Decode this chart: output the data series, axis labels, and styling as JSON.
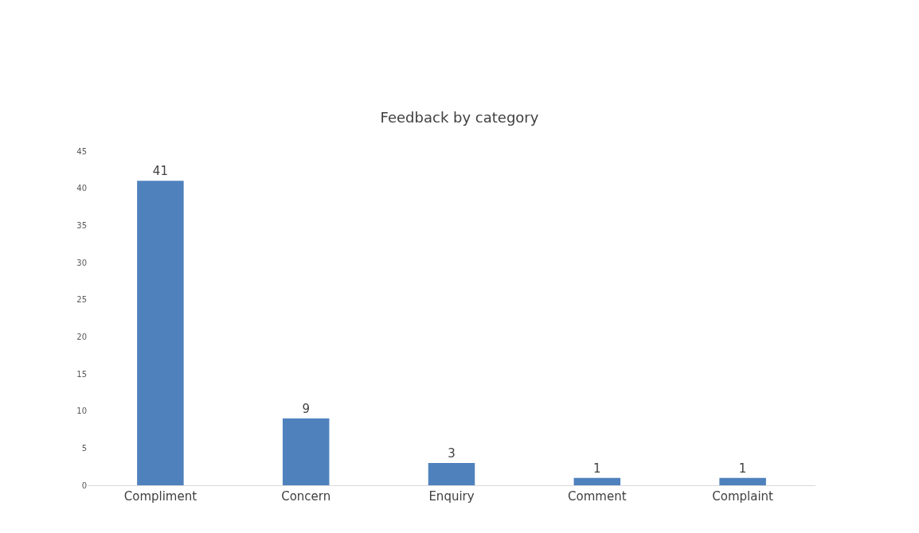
{
  "chart_data": {
    "type": "bar",
    "title": "Feedback by category",
    "categories": [
      "Compliment",
      "Concern",
      "Enquiry",
      "Comment",
      "Complaint"
    ],
    "values": [
      41,
      9,
      3,
      1,
      1
    ],
    "color": "#4f81bd",
    "ylim": [
      0,
      45
    ],
    "yticks": [
      0,
      5,
      10,
      15,
      20,
      25,
      30,
      35,
      40,
      45
    ],
    "grid": false,
    "data_labels": true
  }
}
